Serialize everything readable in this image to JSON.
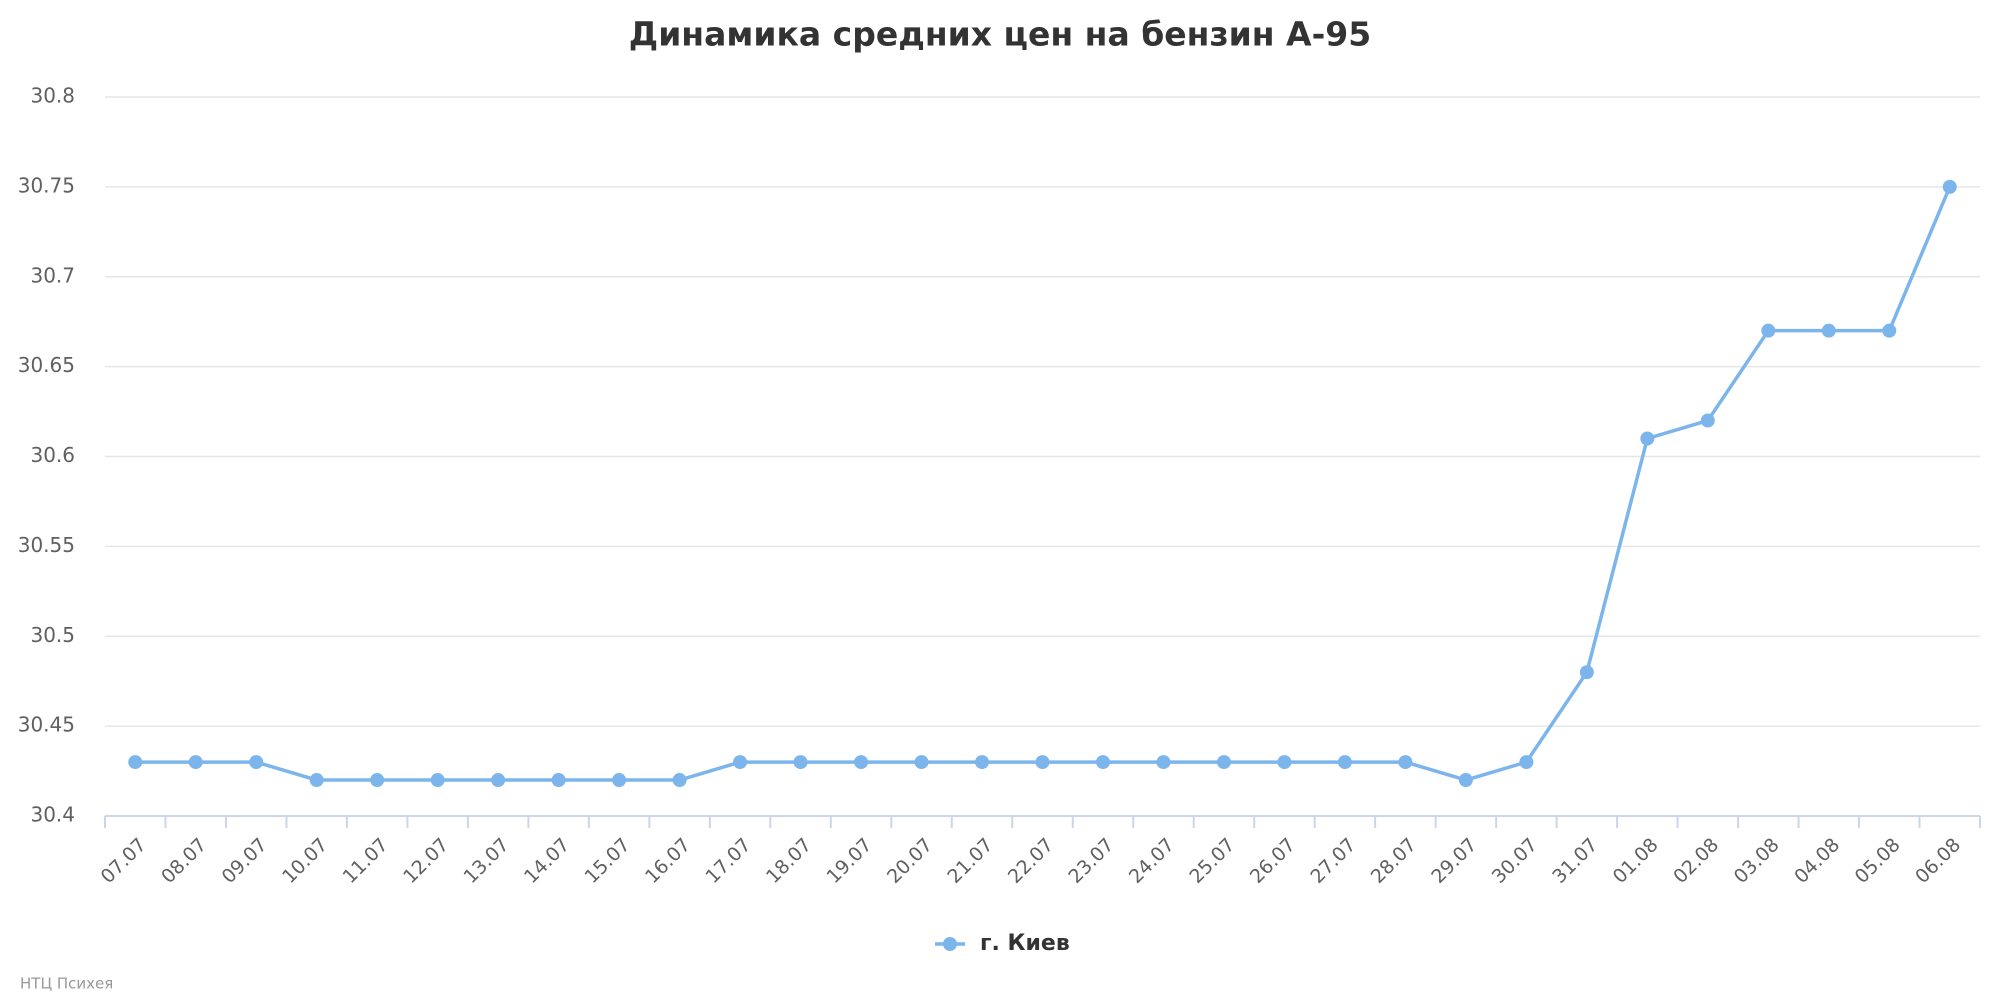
{
  "chart_data": {
    "type": "line",
    "title": "Динамика средних цен на бензин А-95",
    "categories": [
      "07.07",
      "08.07",
      "09.07",
      "10.07",
      "11.07",
      "12.07",
      "13.07",
      "14.07",
      "15.07",
      "16.07",
      "17.07",
      "18.07",
      "19.07",
      "20.07",
      "21.07",
      "22.07",
      "23.07",
      "24.07",
      "25.07",
      "26.07",
      "27.07",
      "28.07",
      "29.07",
      "30.07",
      "31.07",
      "01.08",
      "02.08",
      "03.08",
      "04.08",
      "05.08",
      "06.08"
    ],
    "series": [
      {
        "name": "г. Киев",
        "color": "#7cb5ec",
        "values": [
          30.43,
          30.43,
          30.43,
          30.42,
          30.42,
          30.42,
          30.42,
          30.42,
          30.42,
          30.42,
          30.43,
          30.43,
          30.43,
          30.43,
          30.43,
          30.43,
          30.43,
          30.43,
          30.43,
          30.43,
          30.43,
          30.43,
          30.42,
          30.43,
          30.48,
          30.61,
          30.62,
          30.67,
          30.67,
          30.67,
          30.75
        ]
      }
    ],
    "ylim": [
      30.4,
      30.8
    ],
    "yticks": [
      30.4,
      30.45,
      30.5,
      30.55,
      30.6,
      30.65,
      30.7,
      30.75,
      30.8
    ],
    "grid": true,
    "credit": "НТЦ Психея"
  }
}
